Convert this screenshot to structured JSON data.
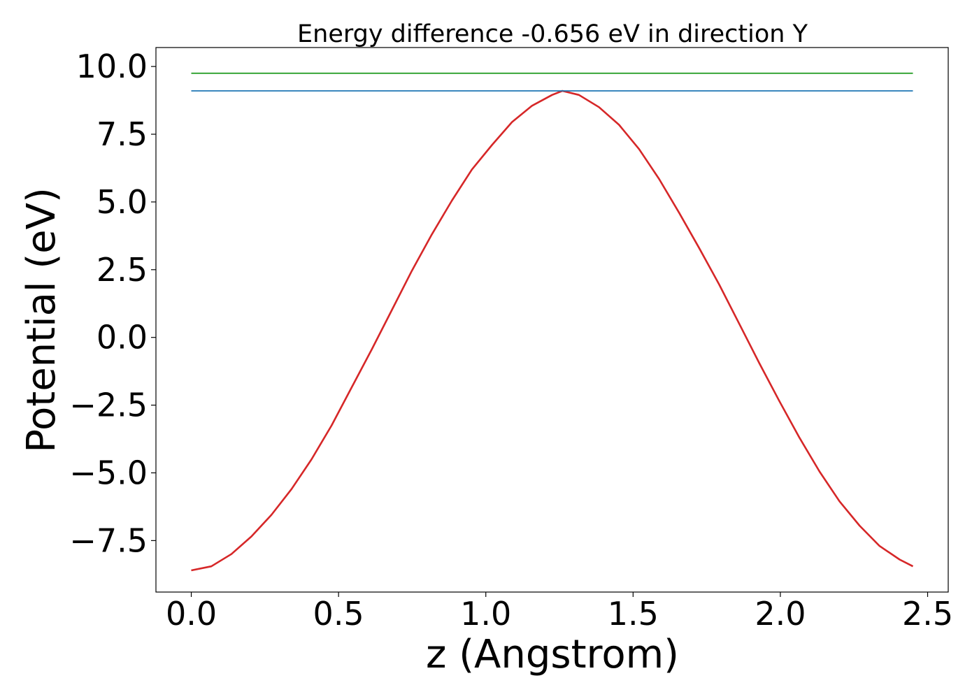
{
  "chart_data": {
    "type": "line",
    "title": "Energy difference -0.656 eV in direction Y",
    "xlabel": "z (Angstrom)",
    "ylabel": "Potential (eV)",
    "xlim": [
      -0.12,
      2.57
    ],
    "ylim": [
      -9.4,
      10.7
    ],
    "grid": false,
    "x_ticks": [
      0.0,
      0.5,
      1.0,
      1.5,
      2.0,
      2.5
    ],
    "x_tick_labels": [
      "0.0",
      "0.5",
      "1.0",
      "1.5",
      "2.0",
      "2.5"
    ],
    "y_ticks": [
      10.0,
      7.5,
      5.0,
      2.5,
      0.0,
      -2.5,
      -5.0,
      -7.5
    ],
    "y_tick_labels": [
      "10.0",
      "7.5",
      "5.0",
      "2.5",
      "0.0",
      "−2.5",
      "−5.0",
      "−7.5"
    ],
    "series": [
      {
        "color": "#d62728",
        "x": [
          0.0,
          0.0681,
          0.1361,
          0.2042,
          0.2722,
          0.3403,
          0.4083,
          0.4764,
          0.5444,
          0.6125,
          0.6806,
          0.7486,
          0.8167,
          0.8847,
          0.9528,
          1.0208,
          1.0889,
          1.1569,
          1.225,
          1.26,
          1.3161,
          1.3842,
          1.4522,
          1.5203,
          1.5883,
          1.6564,
          1.7244,
          1.7925,
          1.8606,
          1.9286,
          1.9967,
          2.0647,
          2.1328,
          2.2008,
          2.2689,
          2.3369,
          2.405,
          2.45
        ],
        "y": [
          -8.6,
          -8.45,
          -8.0,
          -7.35,
          -6.55,
          -5.6,
          -4.5,
          -3.25,
          -1.85,
          -0.45,
          1.0,
          2.45,
          3.8,
          5.05,
          6.2,
          7.1,
          7.95,
          8.55,
          8.95,
          9.1,
          8.95,
          8.5,
          7.85,
          6.95,
          5.85,
          4.6,
          3.3,
          1.95,
          0.5,
          -0.95,
          -2.35,
          -3.7,
          -4.95,
          -6.05,
          -6.95,
          -7.7,
          -8.2,
          -8.45
        ]
      },
      {
        "color": "#1f77b4",
        "x": [
          0.0,
          2.45
        ],
        "y": [
          9.1,
          9.1
        ]
      },
      {
        "color": "#2ca02c",
        "x": [
          0.0,
          2.45
        ],
        "y": [
          9.75,
          9.75
        ]
      }
    ]
  }
}
